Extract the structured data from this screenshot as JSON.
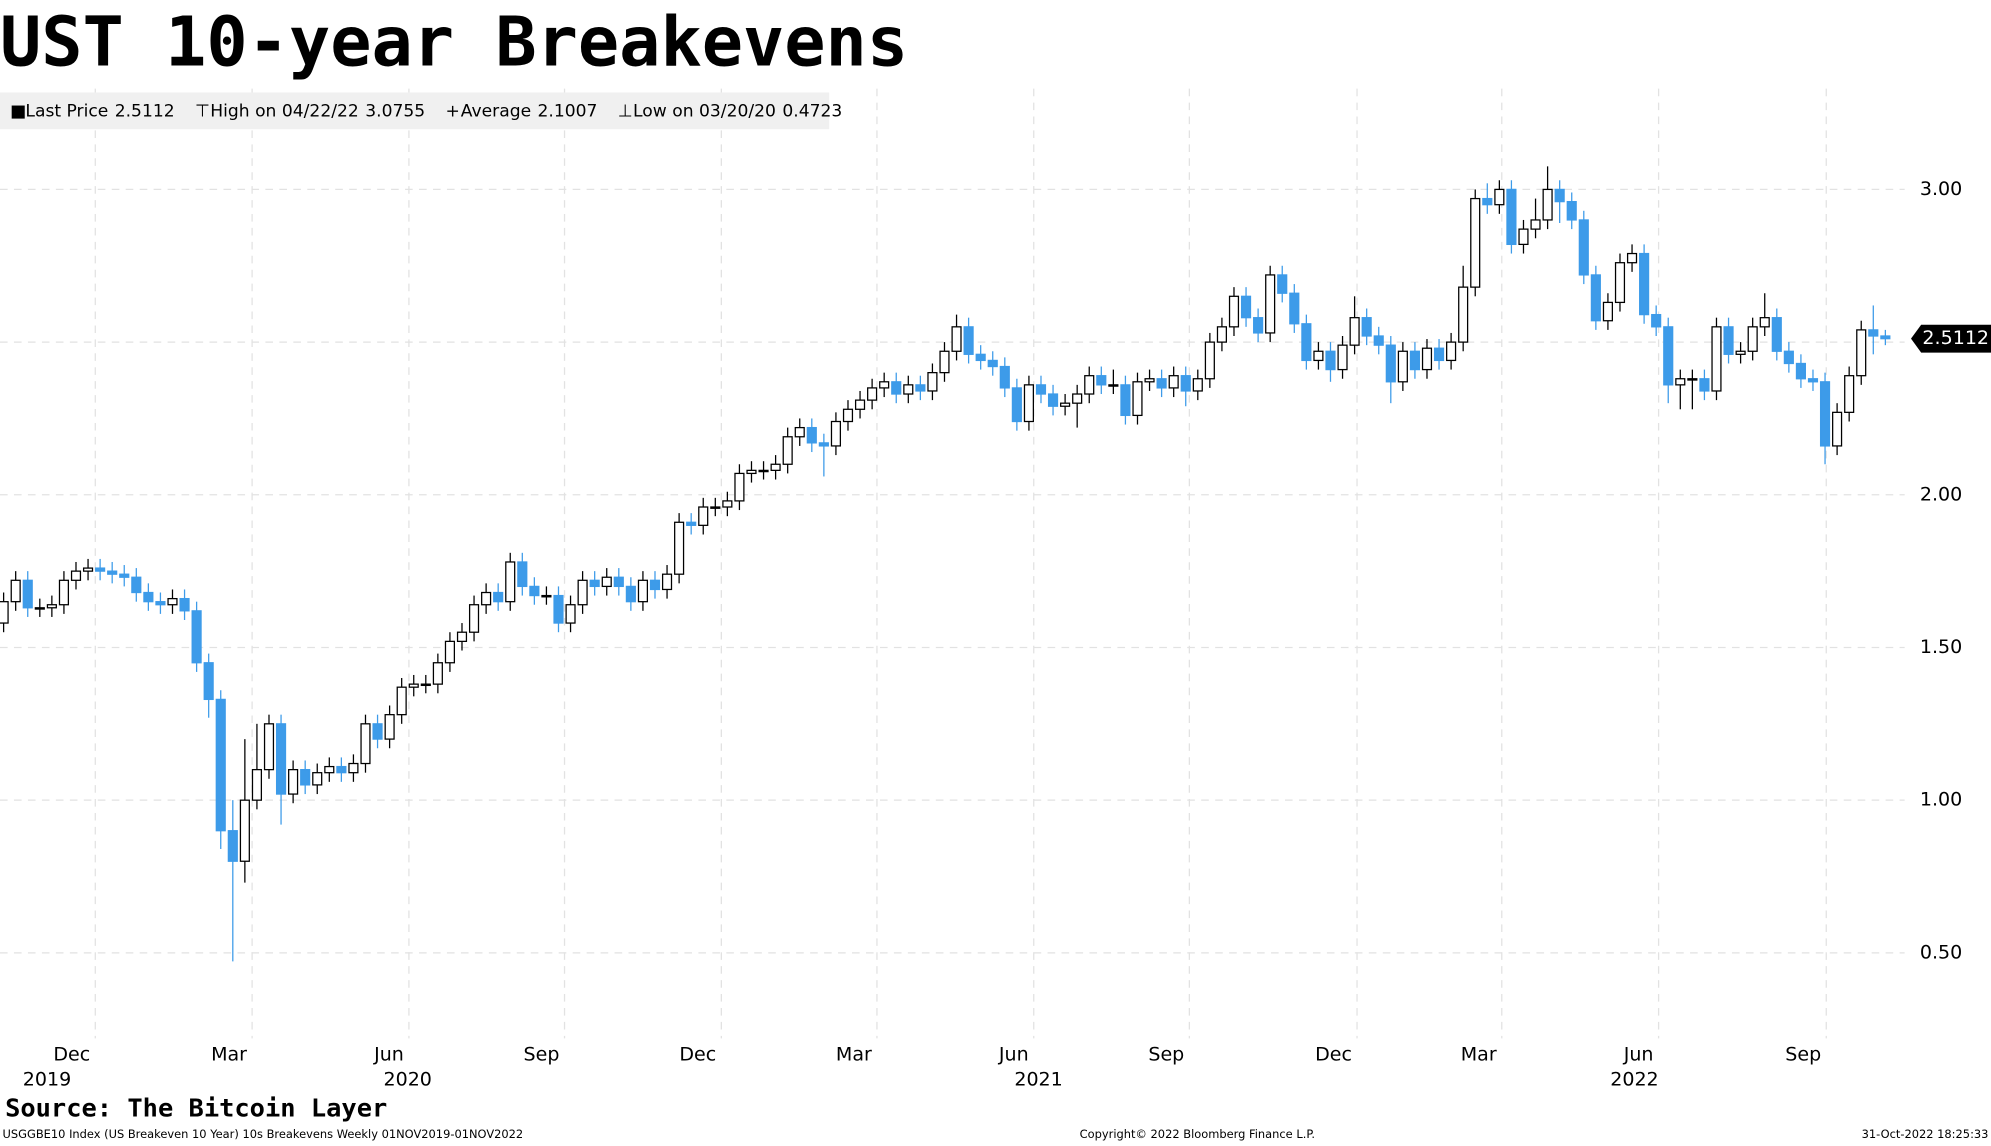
{
  "chart_data": {
    "type": "candlestick",
    "title": "UST 10-year Breakevens",
    "stats": [
      {
        "label": "Last Price",
        "value": 2.5112
      },
      {
        "label": "High on 04/22/22",
        "value": 3.0755
      },
      {
        "label": "Average",
        "value": 2.1007
      },
      {
        "label": "Low on 03/20/20",
        "value": 0.4723
      }
    ],
    "source": "Source: The Bitcoin Layer",
    "footer_left": "USGGBE10 Index (US Breakeven 10 Year) 10s Breakevens  Weekly 01NOV2019-01NOV2022",
    "footer_center": "Copyright© 2022 Bloomberg Finance L.P.",
    "footer_right": "31-Oct-2022 18:25:33",
    "up_color": "#ffffff",
    "down_color": "#3d9be9",
    "grid": true,
    "xlim": [
      -0.3,
      157.6
    ],
    "ylim": [
      0.22,
      3.33
    ],
    "yticks": [
      {
        "value": 0.5,
        "label": "0.50"
      },
      {
        "value": 1,
        "label": "1.00"
      },
      {
        "value": 1.5,
        "label": "1.50"
      },
      {
        "value": 2,
        "label": "2.00"
      },
      {
        "value": 2.5,
        "label": "2.50"
      },
      {
        "value": 3,
        "label": "3.00"
      }
    ],
    "xticks": [
      {
        "value": 7.6,
        "label": "Dec"
      },
      {
        "value": 20.6,
        "label": "Mar"
      },
      {
        "value": 33.6,
        "label": "Jun"
      },
      {
        "value": 46.5,
        "label": "Sep"
      },
      {
        "value": 59.5,
        "label": "Dec"
      },
      {
        "value": 72.4,
        "label": "Mar"
      },
      {
        "value": 85.4,
        "label": "Jun"
      },
      {
        "value": 98.3,
        "label": "Sep"
      },
      {
        "value": 112.2,
        "label": "Dec"
      },
      {
        "value": 124.2,
        "label": "Mar"
      },
      {
        "value": 137.2,
        "label": "Jun"
      },
      {
        "value": 151.1,
        "label": "Sep"
      }
    ],
    "year_ticks": [
      {
        "value": 3.6,
        "label": "2019"
      },
      {
        "value": 33.5,
        "label": "2020"
      },
      {
        "value": 85.8,
        "label": "2021"
      },
      {
        "value": 135.2,
        "label": "2022"
      }
    ],
    "open": [
      1.58,
      1.65,
      1.72,
      1.63,
      1.63,
      1.64,
      1.72,
      1.75,
      1.76,
      1.75,
      1.74,
      1.73,
      1.68,
      1.65,
      1.64,
      1.66,
      1.62,
      1.45,
      1.33,
      0.9,
      0.8,
      1.0,
      1.1,
      1.25,
      1.02,
      1.1,
      1.05,
      1.09,
      1.11,
      1.09,
      1.12,
      1.25,
      1.2,
      1.28,
      1.37,
      1.38,
      1.38,
      1.45,
      1.52,
      1.55,
      1.64,
      1.68,
      1.65,
      1.78,
      1.7,
      1.67,
      1.67,
      1.58,
      1.64,
      1.72,
      1.7,
      1.73,
      1.7,
      1.65,
      1.72,
      1.69,
      1.74,
      1.91,
      1.9,
      1.96,
      1.96,
      1.98,
      2.07,
      2.08,
      2.08,
      2.1,
      2.19,
      2.22,
      2.17,
      2.16,
      2.24,
      2.28,
      2.31,
      2.35,
      2.37,
      2.33,
      2.36,
      2.34,
      2.4,
      2.47,
      2.55,
      2.46,
      2.44,
      2.42,
      2.35,
      2.24,
      2.36,
      2.33,
      2.29,
      2.3,
      2.33,
      2.39,
      2.36,
      2.36,
      2.26,
      2.37,
      2.38,
      2.35,
      2.39,
      2.34,
      2.38,
      2.5,
      2.55,
      2.65,
      2.58,
      2.53,
      2.72,
      2.66,
      2.56,
      2.44,
      2.47,
      2.41,
      2.49,
      2.58,
      2.52,
      2.49,
      2.37,
      2.47,
      2.41,
      2.48,
      2.44,
      2.5,
      2.68,
      2.97,
      2.95,
      3.0,
      2.82,
      2.87,
      2.9,
      3.0,
      2.96,
      2.9,
      2.72,
      2.57,
      2.63,
      2.76,
      2.79,
      2.59,
      2.55,
      2.36,
      2.38,
      2.38,
      2.34,
      2.55,
      2.46,
      2.47,
      2.55,
      2.58,
      2.47,
      2.43,
      2.38,
      2.37,
      2.16,
      2.27,
      2.39,
      2.54,
      2.52
    ],
    "high": [
      1.68,
      1.75,
      1.75,
      1.66,
      1.67,
      1.75,
      1.78,
      1.79,
      1.79,
      1.78,
      1.77,
      1.76,
      1.71,
      1.68,
      1.69,
      1.69,
      1.65,
      1.48,
      1.36,
      1.0,
      1.2,
      1.25,
      1.28,
      1.28,
      1.13,
      1.13,
      1.12,
      1.14,
      1.14,
      1.15,
      1.28,
      1.28,
      1.31,
      1.4,
      1.41,
      1.41,
      1.48,
      1.55,
      1.58,
      1.67,
      1.71,
      1.71,
      1.81,
      1.81,
      1.73,
      1.7,
      1.7,
      1.67,
      1.75,
      1.75,
      1.76,
      1.76,
      1.73,
      1.75,
      1.75,
      1.77,
      1.94,
      1.94,
      1.99,
      1.99,
      2.01,
      2.1,
      2.11,
      2.11,
      2.13,
      2.22,
      2.25,
      2.25,
      2.2,
      2.27,
      2.31,
      2.34,
      2.38,
      2.4,
      2.4,
      2.39,
      2.39,
      2.43,
      2.5,
      2.59,
      2.58,
      2.49,
      2.47,
      2.45,
      2.38,
      2.39,
      2.39,
      2.36,
      2.33,
      2.36,
      2.42,
      2.42,
      2.41,
      2.39,
      2.4,
      2.41,
      2.41,
      2.42,
      2.42,
      2.41,
      2.53,
      2.58,
      2.68,
      2.68,
      2.61,
      2.75,
      2.75,
      2.69,
      2.59,
      2.5,
      2.5,
      2.52,
      2.65,
      2.61,
      2.55,
      2.52,
      2.5,
      2.5,
      2.51,
      2.51,
      2.53,
      2.75,
      3.0,
      3.02,
      3.03,
      3.03,
      2.9,
      2.97,
      3.0755,
      3.03,
      2.99,
      2.93,
      2.75,
      2.66,
      2.79,
      2.82,
      2.82,
      2.62,
      2.58,
      2.41,
      2.41,
      2.41,
      2.58,
      2.58,
      2.5,
      2.58,
      2.66,
      2.61,
      2.5,
      2.46,
      2.41,
      2.4,
      2.3,
      2.42,
      2.57,
      2.62,
      2.54
    ],
    "low": [
      1.55,
      1.62,
      1.6,
      1.6,
      1.6,
      1.61,
      1.69,
      1.72,
      1.72,
      1.71,
      1.7,
      1.65,
      1.62,
      1.61,
      1.61,
      1.59,
      1.42,
      1.27,
      0.84,
      0.4723,
      0.73,
      0.97,
      1.07,
      0.92,
      0.99,
      1.02,
      1.02,
      1.06,
      1.06,
      1.06,
      1.09,
      1.17,
      1.17,
      1.25,
      1.34,
      1.35,
      1.35,
      1.42,
      1.49,
      1.52,
      1.61,
      1.62,
      1.62,
      1.67,
      1.64,
      1.64,
      1.55,
      1.55,
      1.61,
      1.67,
      1.67,
      1.67,
      1.62,
      1.62,
      1.66,
      1.66,
      1.71,
      1.87,
      1.87,
      1.93,
      1.93,
      1.95,
      2.04,
      2.05,
      2.05,
      2.07,
      2.16,
      2.14,
      2.06,
      2.13,
      2.21,
      2.25,
      2.28,
      2.32,
      2.3,
      2.3,
      2.31,
      2.31,
      2.37,
      2.44,
      2.43,
      2.41,
      2.39,
      2.32,
      2.21,
      2.21,
      2.3,
      2.26,
      2.26,
      2.22,
      2.3,
      2.33,
      2.33,
      2.23,
      2.23,
      2.34,
      2.32,
      2.32,
      2.29,
      2.31,
      2.35,
      2.47,
      2.52,
      2.55,
      2.5,
      2.5,
      2.63,
      2.53,
      2.41,
      2.41,
      2.37,
      2.38,
      2.46,
      2.49,
      2.46,
      2.3,
      2.34,
      2.38,
      2.38,
      2.41,
      2.41,
      2.47,
      2.65,
      2.92,
      2.92,
      2.79,
      2.79,
      2.84,
      2.87,
      2.89,
      2.87,
      2.69,
      2.54,
      2.54,
      2.6,
      2.73,
      2.56,
      2.52,
      2.3,
      2.28,
      2.28,
      2.31,
      2.31,
      2.43,
      2.43,
      2.44,
      2.52,
      2.44,
      2.4,
      2.35,
      2.34,
      2.1,
      2.13,
      2.24,
      2.36,
      2.46,
      2.49
    ],
    "close": [
      1.65,
      1.72,
      1.63,
      1.63,
      1.64,
      1.72,
      1.75,
      1.76,
      1.75,
      1.74,
      1.73,
      1.68,
      1.65,
      1.64,
      1.66,
      1.62,
      1.45,
      1.33,
      0.9,
      0.8,
      1.0,
      1.1,
      1.25,
      1.02,
      1.1,
      1.05,
      1.09,
      1.11,
      1.09,
      1.12,
      1.25,
      1.2,
      1.28,
      1.37,
      1.38,
      1.38,
      1.45,
      1.52,
      1.55,
      1.64,
      1.68,
      1.65,
      1.78,
      1.7,
      1.67,
      1.67,
      1.58,
      1.64,
      1.72,
      1.7,
      1.73,
      1.7,
      1.65,
      1.72,
      1.69,
      1.74,
      1.91,
      1.9,
      1.96,
      1.96,
      1.98,
      2.07,
      2.08,
      2.08,
      2.1,
      2.19,
      2.22,
      2.17,
      2.16,
      2.24,
      2.28,
      2.31,
      2.35,
      2.37,
      2.33,
      2.36,
      2.34,
      2.4,
      2.47,
      2.55,
      2.46,
      2.44,
      2.42,
      2.35,
      2.24,
      2.36,
      2.33,
      2.29,
      2.3,
      2.33,
      2.39,
      2.36,
      2.36,
      2.26,
      2.37,
      2.38,
      2.35,
      2.39,
      2.34,
      2.38,
      2.5,
      2.55,
      2.65,
      2.58,
      2.53,
      2.72,
      2.66,
      2.56,
      2.44,
      2.47,
      2.41,
      2.49,
      2.58,
      2.52,
      2.49,
      2.37,
      2.47,
      2.41,
      2.48,
      2.44,
      2.5,
      2.68,
      2.97,
      2.95,
      3.0,
      2.82,
      2.87,
      2.9,
      3.0,
      2.96,
      2.9,
      2.72,
      2.57,
      2.63,
      2.76,
      2.79,
      2.59,
      2.55,
      2.36,
      2.38,
      2.38,
      2.34,
      2.55,
      2.46,
      2.47,
      2.55,
      2.58,
      2.47,
      2.43,
      2.38,
      2.37,
      2.16,
      2.27,
      2.39,
      2.54,
      2.52,
      2.5112
    ]
  }
}
